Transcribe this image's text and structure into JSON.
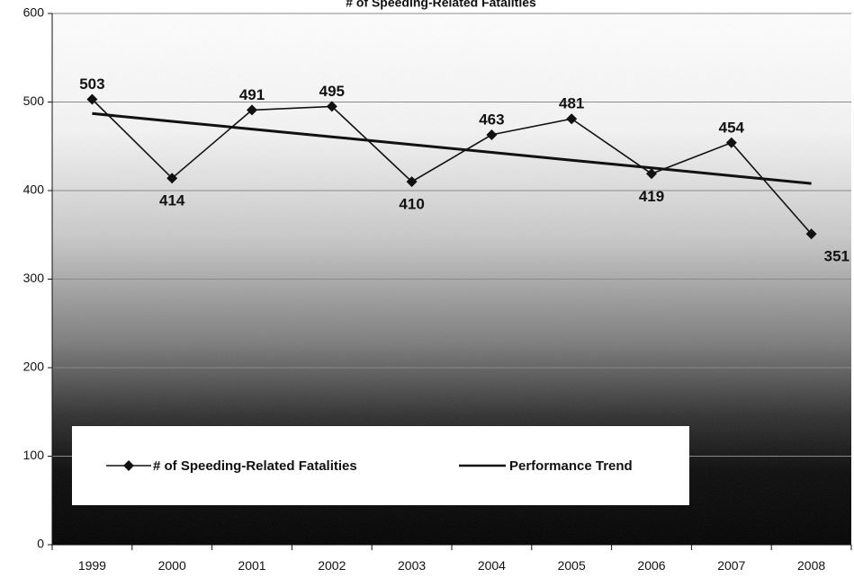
{
  "chart_data": {
    "type": "line",
    "title": "# of Speeding-Related Fatalities",
    "categories": [
      "1999",
      "2000",
      "2001",
      "2002",
      "2003",
      "2004",
      "2005",
      "2006",
      "2007",
      "2008"
    ],
    "series": [
      {
        "name": "# of Speeding-Related Fatalities",
        "values": [
          503,
          414,
          491,
          495,
          410,
          463,
          481,
          419,
          454,
          351
        ],
        "marker": "diamond",
        "color": "#111111"
      },
      {
        "name": "Performance Trend",
        "values": [
          487,
          478.2,
          469.4,
          460.7,
          451.9,
          443.1,
          434.3,
          425.6,
          416.8,
          408
        ],
        "marker": "none",
        "color": "#111111"
      }
    ],
    "ylim": [
      0,
      600
    ],
    "yticks": [
      0,
      100,
      200,
      300,
      400,
      500,
      600
    ],
    "grid": true,
    "legend_position": "bottom-left",
    "background": "gradient white-to-black"
  }
}
